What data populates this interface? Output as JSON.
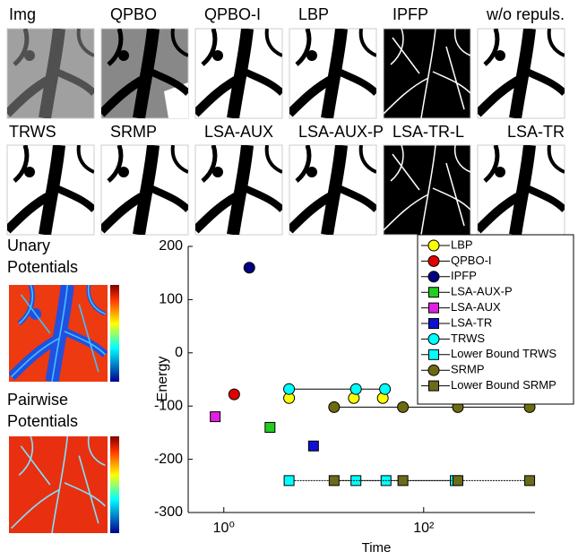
{
  "panels": [
    {
      "label": "Img"
    },
    {
      "label": "QPBO"
    },
    {
      "label": "QPBO-I"
    },
    {
      "label": "LBP"
    },
    {
      "label": "IPFP"
    },
    {
      "label": "w/o repuls."
    },
    {
      "label": "TRWS"
    },
    {
      "label": "SRMP"
    },
    {
      "label": "LSA-AUX"
    },
    {
      "label": "LSA-AUX-P"
    },
    {
      "label": "LSA-TR-L"
    },
    {
      "label": "LSA-TR"
    }
  ],
  "side_labels": {
    "unary": "Unary Potentials",
    "pairwise": "Pairwise Potentials"
  },
  "chart_data": {
    "type": "scatter",
    "xlabel": "Time",
    "ylabel": "Energy",
    "xscale": "log",
    "xlim": [
      0.44,
      1300
    ],
    "xticks": [
      {
        "value": 1,
        "label": "10⁰"
      },
      {
        "value": 100,
        "label": "10²"
      }
    ],
    "ylim": [
      -300,
      200
    ],
    "yticks": [
      -300,
      -200,
      -100,
      0,
      100,
      200
    ],
    "legend": "upper right",
    "series": [
      {
        "name": "LBP",
        "color": "#ffff00",
        "marker": "circle",
        "x": [
          4.5,
          20,
          39
        ],
        "values": [
          -85,
          -85,
          -85
        ]
      },
      {
        "name": "QPBO-I",
        "color": "#e00000",
        "marker": "circle",
        "x": [
          1.27
        ],
        "values": [
          -78
        ]
      },
      {
        "name": "IPFP",
        "color": "#000080",
        "marker": "circle",
        "x": [
          1.8
        ],
        "values": [
          160
        ]
      },
      {
        "name": "LSA-AUX-P",
        "color": "#22cc22",
        "marker": "square",
        "x": [
          2.9
        ],
        "values": [
          -140
        ]
      },
      {
        "name": "LSA-AUX",
        "color": "#e020e0",
        "marker": "square",
        "x": [
          0.82
        ],
        "values": [
          -120
        ]
      },
      {
        "name": "LSA-TR",
        "color": "#1010d0",
        "marker": "square",
        "x": [
          7.9
        ],
        "values": [
          -175
        ]
      },
      {
        "name": "TRWS",
        "color": "#00ffff",
        "marker": "circle",
        "line": "solid",
        "x": [
          4.5,
          21,
          41
        ],
        "values": [
          -68,
          -68,
          -68
        ]
      },
      {
        "name": "Lower Bound TRWS",
        "color": "#00ffff",
        "marker": "square",
        "line": "dotted",
        "x": [
          4.5,
          21,
          42,
          207
        ],
        "values": [
          -240,
          -240,
          -240,
          -240
        ]
      },
      {
        "name": "SRMP",
        "color": "#6b6b10",
        "marker": "circle",
        "line": "solid",
        "x": [
          12.7,
          62,
          220,
          1150
        ],
        "values": [
          -102,
          -102,
          -102,
          -102
        ]
      },
      {
        "name": "Lower Bound SRMP",
        "color": "#6b6b1a",
        "marker": "square",
        "line": "dotted",
        "x": [
          12.7,
          62,
          220,
          1150
        ],
        "values": [
          -240,
          -240,
          -240,
          -240
        ]
      }
    ]
  }
}
